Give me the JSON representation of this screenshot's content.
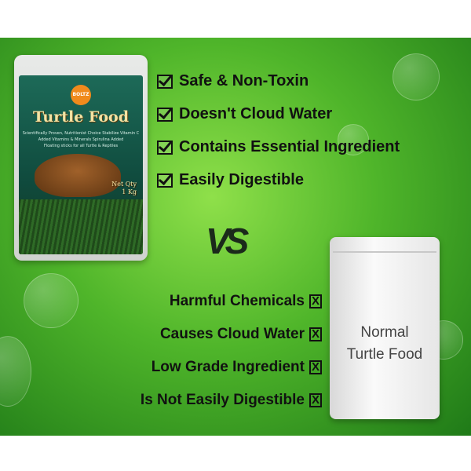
{
  "package": {
    "brand": "BOLTZ",
    "title": "Turtle Food",
    "subtitle_lines": [
      "Scientifically Proven, Nutritionist Choice  Stabilize Vitamin C",
      "Added Vitamins & Minerals  Spirulina Added",
      "Floating sticks for all Turtle & Reptiles"
    ],
    "net_qty_label": "Net Qty",
    "net_qty": "1 Kg"
  },
  "benefits": [
    "Safe & Non-Toxin",
    "Doesn't Cloud Water",
    "Contains Essential Ingredient",
    "Easily Digestible"
  ],
  "vs_label": "VS",
  "drawbacks": [
    "Harmful Chemicals",
    "Causes Cloud Water",
    "Low Grade Ingredient",
    "Is Not Easily Digestible"
  ],
  "x_mark": "X",
  "competitor": {
    "line1": "Normal",
    "line2": "Turtle Food"
  },
  "colors": {
    "background_green": "#4fb52a",
    "text": "#111111"
  }
}
